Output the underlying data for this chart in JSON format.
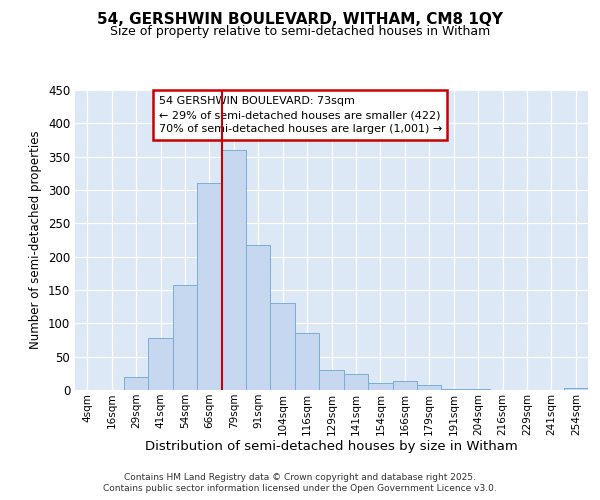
{
  "title1": "54, GERSHWIN BOULEVARD, WITHAM, CM8 1QY",
  "title2": "Size of property relative to semi-detached houses in Witham",
  "xlabel": "Distribution of semi-detached houses by size in Witham",
  "ylabel": "Number of semi-detached properties",
  "bin_labels": [
    "4sqm",
    "16sqm",
    "29sqm",
    "41sqm",
    "54sqm",
    "66sqm",
    "79sqm",
    "91sqm",
    "104sqm",
    "116sqm",
    "129sqm",
    "141sqm",
    "154sqm",
    "166sqm",
    "179sqm",
    "191sqm",
    "204sqm",
    "216sqm",
    "229sqm",
    "241sqm",
    "254sqm"
  ],
  "bar_values": [
    0,
    0,
    20,
    78,
    158,
    311,
    360,
    218,
    130,
    86,
    30,
    24,
    11,
    13,
    7,
    2,
    2,
    0,
    0,
    0,
    3
  ],
  "bar_color": "#c5d8f0",
  "bar_edge_color": "#7aaed6",
  "vline_bin_index": 6,
  "annotation_title": "54 GERSHWIN BOULEVARD: 73sqm",
  "annotation_line1": "← 29% of semi-detached houses are smaller (422)",
  "annotation_line2": "70% of semi-detached houses are larger (1,001) →",
  "annotation_box_color": "#ffffff",
  "annotation_box_edge": "#cc0000",
  "vline_color": "#cc0000",
  "ylim": [
    0,
    450
  ],
  "yticks": [
    0,
    50,
    100,
    150,
    200,
    250,
    300,
    350,
    400,
    450
  ],
  "footer1": "Contains HM Land Registry data © Crown copyright and database right 2025.",
  "footer2": "Contains public sector information licensed under the Open Government Licence v3.0.",
  "bg_color": "#dce8f5",
  "fig_bg_color": "#ffffff"
}
